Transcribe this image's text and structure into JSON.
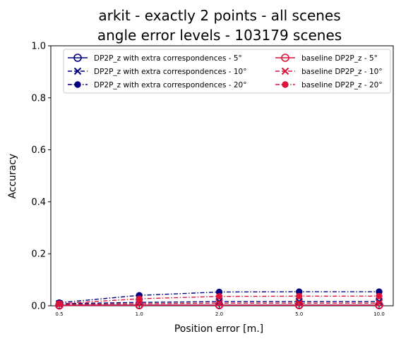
{
  "chart_data": {
    "type": "line",
    "title": "arkit - exactly 2 points - all scenes",
    "subtitle": "angle error levels - 103179 scenes",
    "xlabel": "Position error [m.]",
    "ylabel": "Accuracy",
    "categories": [
      "0.5",
      "1.0",
      "2.0",
      "5.0",
      "10.0"
    ],
    "ylim": [
      0,
      1
    ],
    "yticks": [
      "0.0",
      "0.2",
      "0.4",
      "0.6",
      "0.8",
      "1.0"
    ],
    "grid": false,
    "legend_position": "top-right",
    "series": [
      {
        "name": "DP2P_z with extra correspondences - 5°",
        "color": "#000080",
        "marker": "open-circle",
        "dash": "solid",
        "values": [
          0.002,
          0.003,
          0.003,
          0.003,
          0.003
        ]
      },
      {
        "name": "DP2P_z with extra correspondences - 10°",
        "color": "#000080",
        "marker": "x",
        "dash": "dashed",
        "values": [
          0.008,
          0.013,
          0.016,
          0.016,
          0.016
        ]
      },
      {
        "name": "DP2P_z with extra correspondences - 20°",
        "color": "#000080",
        "marker": "filled-circle",
        "dash": "dashdot",
        "values": [
          0.012,
          0.04,
          0.053,
          0.054,
          0.054
        ]
      },
      {
        "name": "baseline DP2P_z - 5°",
        "color": "#dc143c",
        "marker": "open-circle",
        "dash": "solid",
        "values": [
          0.001,
          0.002,
          0.002,
          0.002,
          0.002
        ]
      },
      {
        "name": "baseline DP2P_z - 10°",
        "color": "#dc143c",
        "marker": "x",
        "dash": "dashed",
        "values": [
          0.005,
          0.008,
          0.01,
          0.01,
          0.01
        ]
      },
      {
        "name": "baseline DP2P_z - 20°",
        "color": "#dc143c",
        "marker": "filled-circle",
        "dash": "dashdot",
        "values": [
          0.008,
          0.027,
          0.036,
          0.037,
          0.037
        ]
      }
    ]
  }
}
